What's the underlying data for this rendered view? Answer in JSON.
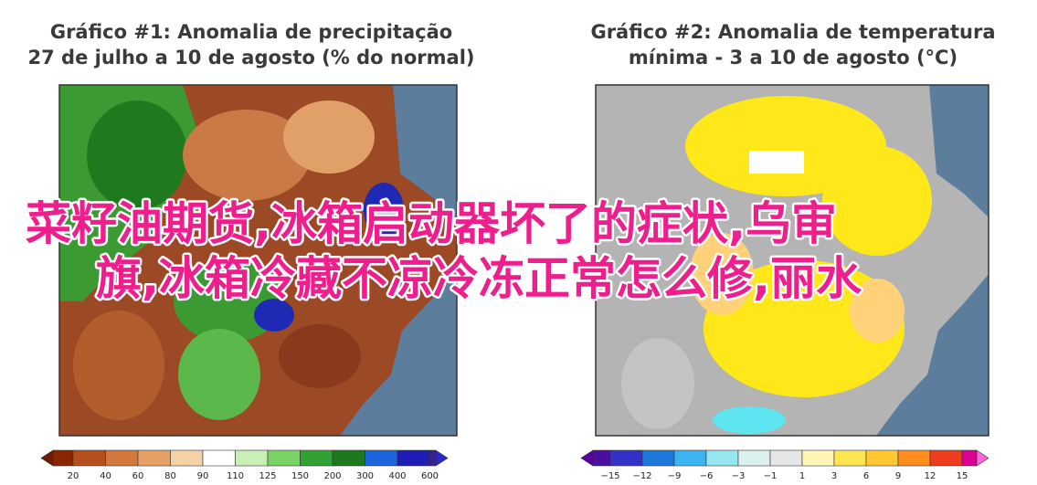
{
  "left_panel": {
    "title_lines": [
      "Gráfico #1: Anomalia de precipitação",
      "27 de julho a 10 de agosto (% do normal)"
    ],
    "colorbar_labels": [
      20,
      40,
      60,
      80,
      90,
      110,
      125,
      150,
      200,
      300,
      400,
      600
    ]
  },
  "right_panel": {
    "title_lines": [
      "Gráfico #2: Anomalia de temperatura",
      "mínima - 3 a 10 de agosto (°C)"
    ],
    "colorbar_labels": [
      "−15",
      "−12",
      "−9",
      "−6",
      "−3",
      "−1",
      "1",
      "3",
      "6",
      "9",
      "12",
      "15"
    ]
  },
  "overlay": {
    "lines": [
      "菜籽油期货,冰箱启动器坏了的症状,乌审",
      "旗,冰箱冷藏不凉冷冻正常怎么修,丽水"
    ]
  }
}
